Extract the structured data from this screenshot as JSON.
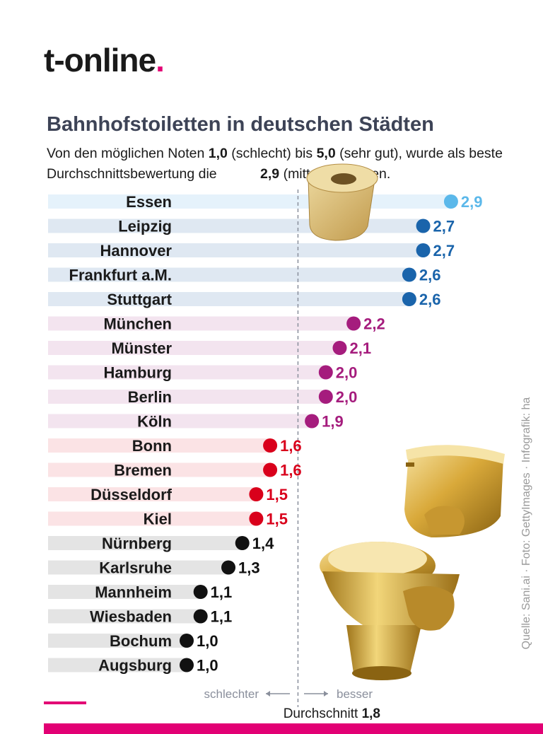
{
  "header": {
    "logo_text": "t-online",
    "logo_dot": "."
  },
  "title": "Bahnhofstoiletten in deutschen Städten",
  "subtitle": {
    "part1": "Von den möglichen Noten ",
    "low": "1,0",
    "part2": " (schlecht) bis ",
    "high": "5,0",
    "part3": " (sehr gut), wurde als beste Durchschnittsbewertung die ",
    "best": "2,9",
    "part4": " (mittel) vergeben."
  },
  "source": "Quelle: Sani.ai · Foto: GettyImages · Infografik: ha",
  "axis_hints": {
    "worse": "schlechter",
    "better": "besser",
    "average_label": "Durchschnitt",
    "average_value": "1,8"
  },
  "colors": {
    "accent": "#e20074",
    "light_blue": "#5bb8ea",
    "blue": "#1a64ab",
    "purple": "#a51c7d",
    "red": "#d9001b",
    "black": "#111111"
  },
  "chart_data": {
    "type": "dot",
    "xlim": [
      1.0,
      2.9
    ],
    "average": 1.8,
    "categories": [
      "Essen",
      "Leipzig",
      "Hannover",
      "Frankfurt a.M.",
      "Stuttgart",
      "München",
      "Münster",
      "Hamburg",
      "Berlin",
      "Köln",
      "Bonn",
      "Bremen",
      "Düsseldorf",
      "Kiel",
      "Nürnberg",
      "Karlsruhe",
      "Mannheim",
      "Wiesbaden",
      "Bochum",
      "Augsburg"
    ],
    "values": [
      2.9,
      2.7,
      2.7,
      2.6,
      2.6,
      2.2,
      2.1,
      2.0,
      2.0,
      1.9,
      1.6,
      1.6,
      1.5,
      1.5,
      1.4,
      1.3,
      1.1,
      1.1,
      1.0,
      1.0
    ],
    "labels": [
      "2,9",
      "2,7",
      "2,7",
      "2,6",
      "2,6",
      "2,2",
      "2,1",
      "2,0",
      "2,0",
      "1,9",
      "1,6",
      "1,6",
      "1,5",
      "1,5",
      "1,4",
      "1,3",
      "1,1",
      "1,1",
      "1,0",
      "1,0"
    ],
    "groups": [
      "light_blue",
      "blue",
      "blue",
      "blue",
      "blue",
      "purple",
      "purple",
      "purple",
      "purple",
      "purple",
      "red",
      "red",
      "red",
      "red",
      "black",
      "black",
      "black",
      "black",
      "black",
      "black"
    ]
  }
}
